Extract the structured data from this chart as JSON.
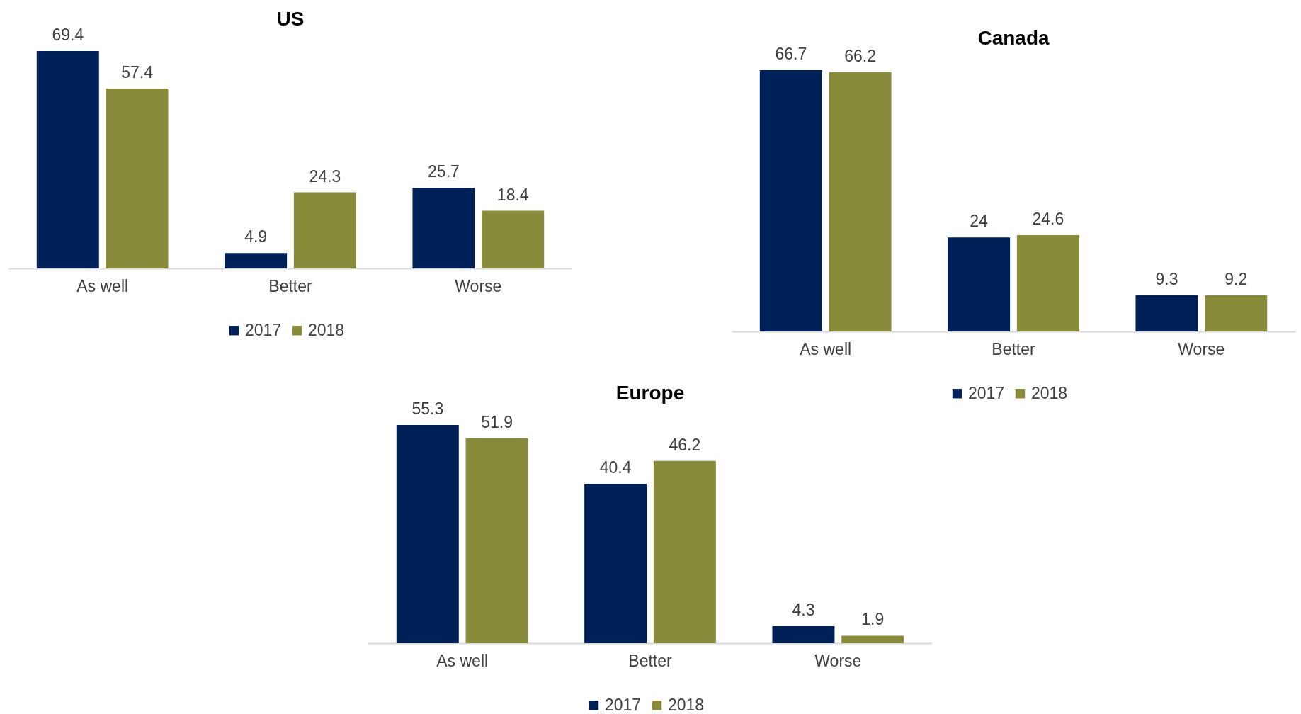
{
  "chart_data": [
    {
      "type": "bar",
      "title": "US",
      "categories": [
        "As well",
        "Better",
        "Worse"
      ],
      "data_labels": true,
      "legend": "bottom",
      "series": [
        {
          "name": "2017",
          "color": "#002157",
          "values": [
            69.4,
            4.9,
            25.7
          ]
        },
        {
          "name": "2018",
          "color": "#878b3a",
          "values": [
            57.4,
            24.3,
            18.4
          ]
        }
      ]
    },
    {
      "type": "bar",
      "title": "Canada",
      "categories": [
        "As well",
        "Better",
        "Worse"
      ],
      "data_labels": true,
      "legend": "bottom",
      "series": [
        {
          "name": "2017",
          "color": "#002157",
          "values": [
            66.7,
            24,
            9.3
          ]
        },
        {
          "name": "2018",
          "color": "#878b3a",
          "values": [
            66.2,
            24.6,
            9.2
          ]
        }
      ]
    },
    {
      "type": "bar",
      "title": "Europe",
      "categories": [
        "As well",
        "Better",
        "Worse"
      ],
      "data_labels": true,
      "legend": "bottom",
      "series": [
        {
          "name": "2017",
          "color": "#002157",
          "values": [
            55.3,
            40.4,
            4.3
          ]
        },
        {
          "name": "2018",
          "color": "#878b3a",
          "values": [
            51.9,
            46.2,
            1.9
          ]
        }
      ]
    }
  ]
}
